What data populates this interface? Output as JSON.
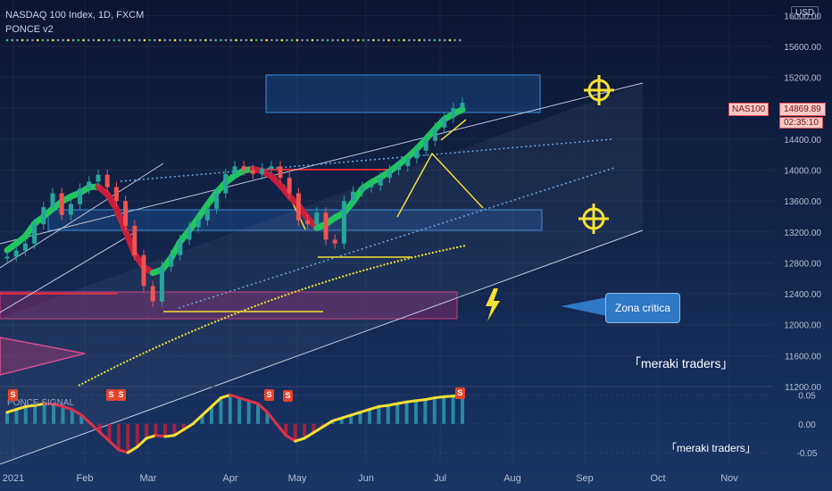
{
  "header": {
    "title": "NASDAQ 100 Index, 1D, FXCM",
    "indicator": "PONCE v2",
    "currency_button": "USD"
  },
  "price_tag": {
    "symbol": "NAS100",
    "price": "14869.89",
    "countdown": "02:35:10"
  },
  "callout": "Zona critica",
  "watermarks": [
    "「meraki traders」",
    "「meraki traders」"
  ],
  "sub_indicator": "PONCE SIGNAL",
  "signal_label": "S",
  "colors": {
    "bull": "#22c55e",
    "bear": "#c81e3a",
    "annotation": "#f5e033",
    "zone": "#2f86d6",
    "critical_zone": "#d83a7c",
    "trend": "#c0c8dc"
  },
  "chart_data": [
    {
      "type": "line",
      "title": "NASDAQ 100 Index, 1D, FXCM",
      "x_ticks": [
        "2021",
        "Feb",
        "Mar",
        "Apr",
        "May",
        "Jun",
        "Jul",
        "Aug",
        "Sep",
        "Oct",
        "Nov"
      ],
      "y_ticks": [
        "16000.00",
        "15600.00",
        "15200.00",
        "14800.00",
        "14400.00",
        "14000.00",
        "13600.00",
        "13200.00",
        "12800.00",
        "12400.00",
        "12000.00",
        "11600.00",
        "11200.00"
      ],
      "ylim": [
        11200,
        16200
      ],
      "series": [
        {
          "values": [
            12880,
            12960,
            13050,
            13300,
            13520,
            13700,
            13420,
            13560,
            13760,
            13850,
            13940,
            13780,
            13600,
            13280,
            12900,
            12500,
            12300,
            12750,
            12900,
            13100,
            13260,
            13350,
            13500,
            13700,
            13950,
            14050,
            14000,
            13950,
            14020,
            14050,
            13900,
            13700,
            13350,
            13300,
            13450,
            13100,
            13050,
            13600,
            13720,
            13780,
            13800,
            13900,
            14000,
            14050,
            14150,
            14250,
            14380,
            14550,
            14680,
            14800,
            14870
          ]
        }
      ]
    },
    {
      "type": "bar",
      "title": "PONCE SIGNAL",
      "y_ticks": [
        "0.05",
        "0.00",
        "-0.05"
      ],
      "ylim": [
        -0.07,
        0.06
      ],
      "series": [
        {
          "values": [
            0.02,
            0.025,
            0.03,
            0.032,
            0.035,
            0.034,
            0.03,
            0.025,
            0.015,
            0.0,
            -0.015,
            -0.03,
            -0.045,
            -0.05,
            -0.04,
            -0.025,
            -0.02,
            -0.022,
            -0.02,
            -0.01,
            0.0,
            0.015,
            0.03,
            0.045,
            0.05,
            0.045,
            0.04,
            0.035,
            0.02,
            0.0,
            -0.02,
            -0.03,
            -0.025,
            -0.015,
            -0.005,
            0.005,
            0.01,
            0.015,
            0.02,
            0.025,
            0.03,
            0.032,
            0.035,
            0.038,
            0.04,
            0.042,
            0.045,
            0.047,
            0.048,
            0.05
          ]
        }
      ]
    }
  ]
}
